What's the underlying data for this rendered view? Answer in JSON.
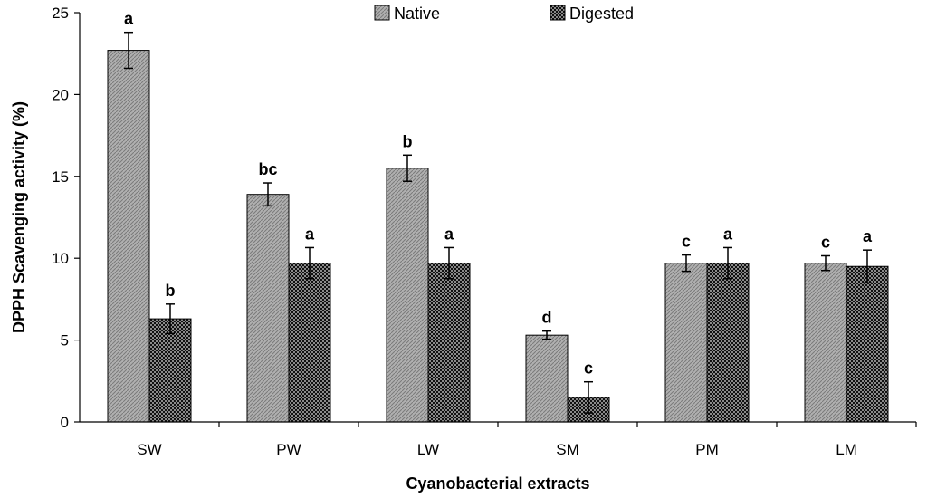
{
  "chart_data": {
    "type": "bar",
    "title": "",
    "xlabel": "Cyanobacterial extracts",
    "ylabel": "DPPH Scavenging activity (%)",
    "ylim": [
      0,
      25
    ],
    "yticks": [
      0,
      5,
      10,
      15,
      20,
      25
    ],
    "grid": false,
    "legend_position": "top-center",
    "categories": [
      "SW",
      "PW",
      "LW",
      "SM",
      "PM",
      "LM"
    ],
    "series": [
      {
        "name": "Native",
        "color": "#a6a6a6",
        "pattern": "fine-diagonal",
        "values": [
          22.7,
          13.9,
          15.5,
          5.3,
          9.7,
          9.7
        ],
        "errors": [
          1.1,
          0.7,
          0.8,
          0.25,
          0.5,
          0.45
        ],
        "significance": [
          "a",
          "bc",
          "b",
          "d",
          "c",
          "c"
        ]
      },
      {
        "name": "Digested",
        "color": "#222222",
        "pattern": "checker",
        "values": [
          6.3,
          9.7,
          9.7,
          1.5,
          9.7,
          9.5
        ],
        "errors": [
          0.9,
          0.95,
          0.95,
          0.95,
          0.95,
          1.0
        ],
        "significance": [
          "b",
          "a",
          "a",
          "c",
          "a",
          "a"
        ]
      }
    ]
  }
}
